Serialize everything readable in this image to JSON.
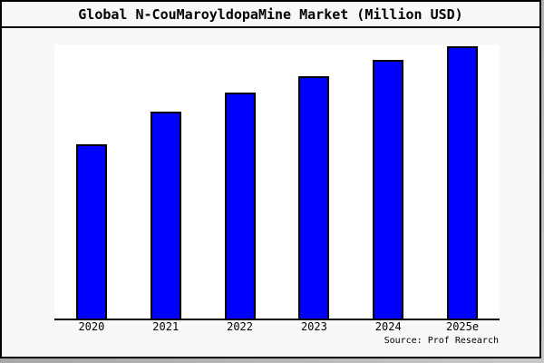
{
  "window": {
    "background": "#f8f8f8",
    "border_color": "#000000",
    "shadow_color": "#a9a9a9"
  },
  "header": {
    "title": "Global N-CouMaroyldopaMine Market (Million USD)"
  },
  "footer": {
    "source": "Source: Prof Research"
  },
  "chart_data": {
    "type": "bar",
    "title": "Global N-CouMaroyldopaMine Market (Million USD)",
    "categories": [
      "2020",
      "2021",
      "2022",
      "2023",
      "2024",
      "2025e"
    ],
    "values": [
      64,
      76,
      83,
      89,
      95,
      100
    ],
    "value_scale": "relative; y-axis has no ticks or labels, values estimated as percent of tallest (2025e) bar",
    "xlabel": "",
    "ylabel": "",
    "ylim": [
      0,
      100
    ],
    "grid": false,
    "legend_position": "none",
    "bar_color": "#0000ff",
    "bar_edge_color": "#000000",
    "plot_background": "#ffffff",
    "outer_background": "#f8f8f8",
    "axis_line_color": "#000000",
    "source": "Source: Prof Research"
  }
}
